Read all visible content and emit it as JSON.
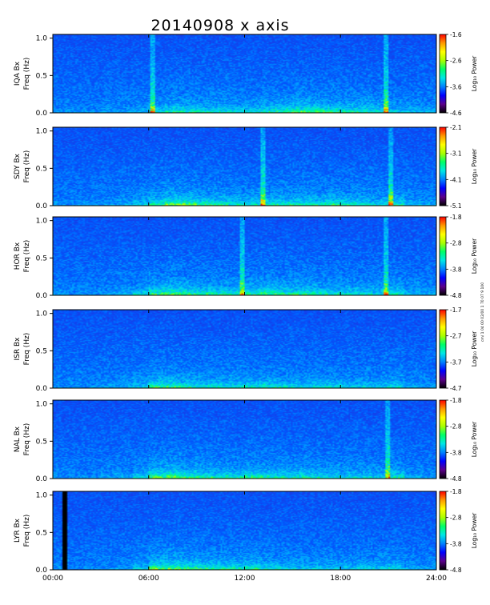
{
  "chart_data": {
    "type": "heatmap",
    "title": "20140908 x axis",
    "side_note": "cm/ 1 04 00 02/00 1 70 07 9 100",
    "x": {
      "min": 0,
      "max": 24,
      "ticks": [
        0,
        6,
        12,
        18,
        24
      ],
      "tick_labels": [
        "00:00",
        "06:00",
        "12:00",
        "18:00",
        "24:00"
      ]
    },
    "y": {
      "min": 0,
      "max": 1.05,
      "ticks": [
        0.0,
        0.5,
        1.0
      ],
      "tick_labels": [
        "0.0",
        "0.5",
        "1.0"
      ]
    },
    "colormap": [
      "#000000",
      "#5c008c",
      "#0000ff",
      "#0082ff",
      "#00e6e6",
      "#00ff66",
      "#aaff00",
      "#ffff00",
      "#ff9900",
      "#ff0000"
    ],
    "panels": [
      {
        "station_label": "IQA Bx",
        "freq_label": "Freq (Hz)",
        "cb_label": "Log₁₀ Power",
        "cb_ticks": [
          "-1.6",
          "-2.6",
          "-3.6",
          "-4.6"
        ],
        "cb_min": -4.6,
        "cb_max": -1.6,
        "activity": [
          0.1,
          0.1,
          0.1,
          0.15,
          0.15,
          0.2,
          0.35,
          0.45,
          0.45,
          0.4,
          0.4,
          0.35,
          0.35,
          0.45,
          0.5,
          0.55,
          0.55,
          0.5,
          0.45,
          0.45,
          0.4,
          0.3,
          0.25,
          0.2
        ],
        "lines": [
          6.2,
          20.8
        ],
        "gap": null
      },
      {
        "station_label": "SDY Bx",
        "freq_label": "Freq (Hz)",
        "cb_label": "Log₁₀ Power",
        "cb_ticks": [
          "-2.1",
          "-3.1",
          "-4.1",
          "-5.1"
        ],
        "cb_min": -5.1,
        "cb_max": -2.1,
        "activity": [
          0.1,
          0.1,
          0.1,
          0.15,
          0.2,
          0.3,
          0.5,
          0.65,
          0.6,
          0.5,
          0.45,
          0.4,
          0.4,
          0.45,
          0.45,
          0.45,
          0.45,
          0.5,
          0.45,
          0.4,
          0.35,
          0.45,
          0.25,
          0.2
        ],
        "lines": [
          13.1,
          21.1
        ],
        "gap": null
      },
      {
        "station_label": "HOR Bx",
        "freq_label": "Freq (Hz)",
        "cb_label": "Log₁₀ Power",
        "cb_ticks": [
          "-1.8",
          "-2.8",
          "-3.8",
          "-4.8"
        ],
        "cb_min": -4.8,
        "cb_max": -1.8,
        "activity": [
          0.15,
          0.1,
          0.1,
          0.15,
          0.2,
          0.35,
          0.55,
          0.6,
          0.55,
          0.5,
          0.45,
          0.45,
          0.5,
          0.55,
          0.5,
          0.5,
          0.45,
          0.45,
          0.4,
          0.4,
          0.35,
          0.45,
          0.25,
          0.2
        ],
        "lines": [
          11.8,
          20.8
        ],
        "gap": null
      },
      {
        "station_label": "ISR Bx",
        "freq_label": "Freq (Hz)",
        "cb_label": "Log₁₀ Power",
        "cb_ticks": [
          "-1.7",
          "-2.7",
          "-3.7",
          "-4.7"
        ],
        "cb_min": -4.7,
        "cb_max": -1.7,
        "activity": [
          0.1,
          0.1,
          0.1,
          0.15,
          0.2,
          0.3,
          0.55,
          0.55,
          0.45,
          0.4,
          0.4,
          0.4,
          0.4,
          0.45,
          0.4,
          0.35,
          0.35,
          0.35,
          0.3,
          0.3,
          0.3,
          0.35,
          0.2,
          0.15
        ],
        "lines": [],
        "gap": null
      },
      {
        "station_label": "NAL Bx",
        "freq_label": "Freq (Hz)",
        "cb_label": "Log₁₀ Power",
        "cb_ticks": [
          "-1.8",
          "-2.8",
          "-3.8",
          "-4.8"
        ],
        "cb_min": -4.8,
        "cb_max": -1.8,
        "activity": [
          0.1,
          0.1,
          0.1,
          0.15,
          0.2,
          0.35,
          0.6,
          0.65,
          0.55,
          0.5,
          0.45,
          0.45,
          0.5,
          0.5,
          0.45,
          0.45,
          0.4,
          0.4,
          0.35,
          0.35,
          0.3,
          0.45,
          0.2,
          0.15
        ],
        "lines": [
          20.9
        ],
        "gap": null
      },
      {
        "station_label": "LYR Bx",
        "freq_label": "Freq (Hz)",
        "cb_label": "Log₁₀ Power",
        "cb_ticks": [
          "-1.8",
          "-2.8",
          "-3.8",
          "-4.8"
        ],
        "cb_min": -4.8,
        "cb_max": -1.8,
        "activity": [
          0.1,
          0.05,
          0.1,
          0.1,
          0.15,
          0.3,
          0.6,
          0.6,
          0.55,
          0.5,
          0.45,
          0.45,
          0.45,
          0.4,
          0.35,
          0.3,
          0.3,
          0.3,
          0.3,
          0.3,
          0.3,
          0.35,
          0.2,
          0.15
        ],
        "lines": [],
        "gap": [
          0.55,
          0.85
        ]
      }
    ]
  }
}
